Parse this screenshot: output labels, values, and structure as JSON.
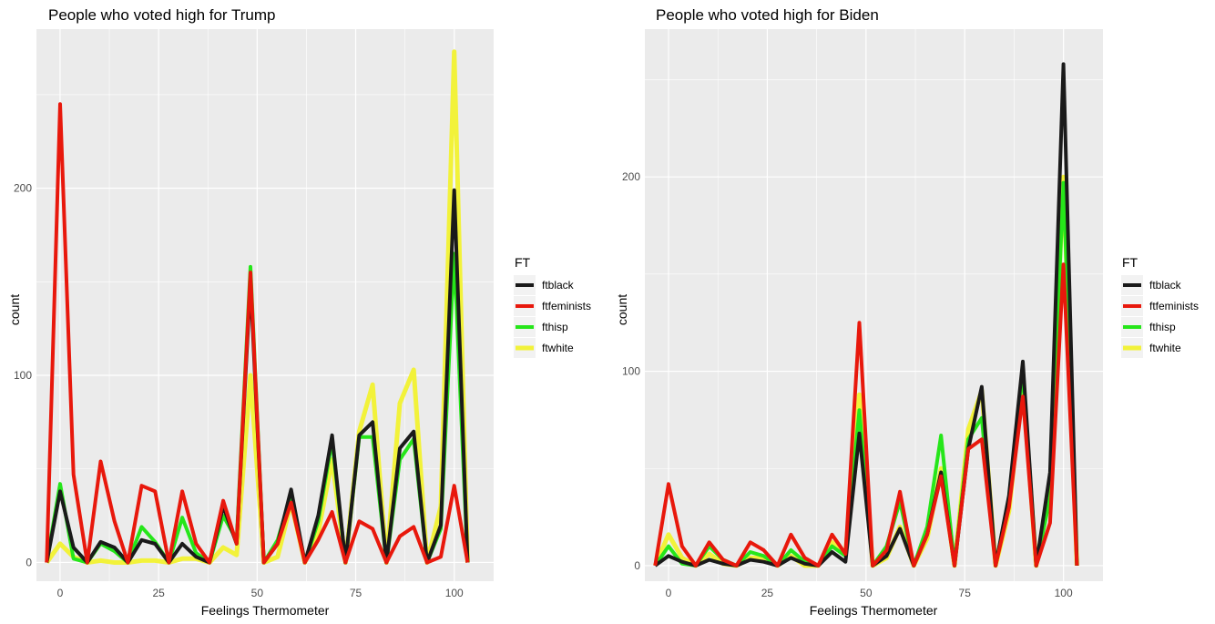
{
  "colors": {
    "ftblack": "#1a1a1a",
    "ftfeminists": "#e8180c",
    "fthisp": "#26e61a",
    "ftwhite": "#f2f23a",
    "panel_background": "#ebebeb",
    "grid": "#ffffff"
  },
  "chart_data": [
    {
      "type": "line",
      "title": "People who voted high for Trump",
      "xlabel": "Feelings Thermometer",
      "ylabel": "count",
      "xlim": [
        -6,
        110
      ],
      "ylim": [
        -10,
        285
      ],
      "x_ticks": [
        0,
        25,
        50,
        75,
        100
      ],
      "y_ticks": [
        0,
        100,
        200
      ],
      "grid": true,
      "legend": {
        "title": "FT",
        "placement": "right",
        "entries": [
          "ftblack",
          "ftfeminists",
          "fthisp",
          "ftwhite"
        ]
      },
      "x": [
        -3.4,
        0,
        3.4,
        6.9,
        10.3,
        13.8,
        17.2,
        20.7,
        24.1,
        27.6,
        31,
        34.5,
        37.9,
        41.4,
        44.8,
        48.3,
        51.7,
        55.2,
        58.6,
        62.1,
        65.5,
        69,
        72.4,
        75.9,
        79.3,
        82.8,
        86.2,
        89.7,
        93.1,
        96.6,
        100,
        103.4
      ],
      "series": [
        {
          "name": "ftblack",
          "values": [
            0,
            38,
            8,
            0,
            11,
            8,
            0,
            12,
            10,
            0,
            10,
            3,
            0,
            30,
            10,
            150,
            0,
            10,
            39,
            0,
            25,
            68,
            0,
            68,
            75,
            0,
            61,
            70,
            0,
            20,
            199,
            0
          ]
        },
        {
          "name": "ftfeminists",
          "values": [
            0,
            245,
            47,
            0,
            54,
            22,
            0,
            41,
            38,
            0,
            38,
            10,
            0,
            33,
            10,
            155,
            0,
            10,
            32,
            0,
            12,
            27,
            0,
            22,
            18,
            0,
            14,
            19,
            0,
            3,
            41,
            0
          ]
        },
        {
          "name": "fthisp",
          "values": [
            0,
            42,
            2,
            0,
            10,
            6,
            0,
            19,
            11,
            0,
            24,
            5,
            0,
            25,
            12,
            158,
            0,
            12,
            36,
            0,
            22,
            65,
            0,
            67,
            67,
            0,
            55,
            66,
            0,
            18,
            165,
            0
          ]
        },
        {
          "name": "ftwhite",
          "values": [
            0,
            10,
            3,
            0,
            1,
            0,
            0,
            1,
            1,
            0,
            2,
            2,
            0,
            8,
            4,
            100,
            0,
            3,
            32,
            0,
            16,
            55,
            0,
            70,
            95,
            0,
            85,
            103,
            0,
            30,
            273,
            0
          ]
        }
      ]
    },
    {
      "type": "line",
      "title": "People who voted high for Biden",
      "xlabel": "Feelings Thermometer",
      "ylabel": "count",
      "xlim": [
        -6,
        110
      ],
      "ylim": [
        -8,
        276
      ],
      "x_ticks": [
        0,
        25,
        50,
        75,
        100
      ],
      "y_ticks": [
        0,
        100,
        200
      ],
      "grid": true,
      "legend": {
        "title": "FT",
        "placement": "right",
        "entries": [
          "ftblack",
          "ftfeminists",
          "fthisp",
          "ftwhite"
        ]
      },
      "x": [
        -3.4,
        0,
        3.4,
        6.9,
        10.3,
        13.8,
        17.2,
        20.7,
        24.1,
        27.6,
        31,
        34.5,
        37.9,
        41.4,
        44.8,
        48.3,
        51.7,
        55.2,
        58.6,
        62.1,
        65.5,
        69,
        72.4,
        75.9,
        79.3,
        82.8,
        86.2,
        89.7,
        93.1,
        96.6,
        100,
        103.4
      ],
      "series": [
        {
          "name": "ftblack",
          "values": [
            0,
            5,
            2,
            0,
            3,
            1,
            0,
            3,
            2,
            0,
            4,
            1,
            0,
            7,
            2,
            68,
            0,
            5,
            19,
            0,
            16,
            48,
            0,
            60,
            92,
            0,
            36,
            105,
            0,
            48,
            258,
            0
          ]
        },
        {
          "name": "ftfeminists",
          "values": [
            0,
            42,
            10,
            0,
            12,
            3,
            0,
            12,
            8,
            0,
            16,
            4,
            0,
            16,
            6,
            125,
            0,
            8,
            38,
            0,
            16,
            46,
            0,
            60,
            65,
            0,
            30,
            87,
            0,
            22,
            155,
            0
          ]
        },
        {
          "name": "fthisp",
          "values": [
            0,
            10,
            1,
            0,
            10,
            3,
            0,
            7,
            5,
            0,
            8,
            2,
            0,
            10,
            5,
            80,
            0,
            10,
            33,
            0,
            20,
            67,
            0,
            65,
            76,
            0,
            35,
            100,
            0,
            35,
            197,
            0
          ]
        },
        {
          "name": "ftwhite",
          "values": [
            0,
            16,
            4,
            0,
            6,
            1,
            0,
            4,
            4,
            0,
            5,
            0,
            0,
            12,
            6,
            88,
            0,
            4,
            20,
            0,
            14,
            50,
            0,
            70,
            90,
            0,
            28,
            95,
            0,
            40,
            200,
            0
          ]
        }
      ]
    }
  ]
}
